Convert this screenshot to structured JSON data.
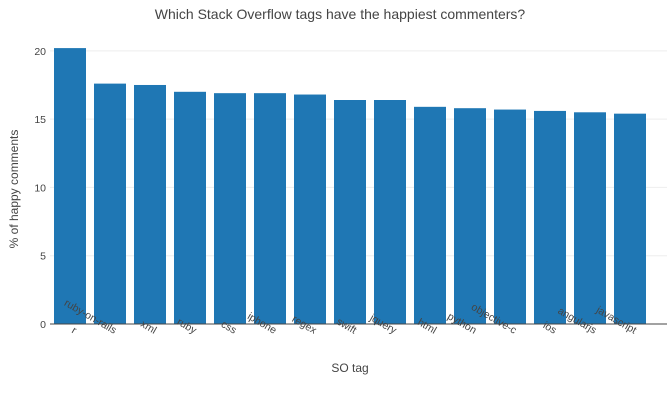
{
  "chart_data": {
    "type": "bar",
    "title": "Which Stack Overflow tags have the happiest commenters?",
    "xlabel": "SO tag",
    "ylabel": "% of happy comments",
    "ylim": [
      0,
      20.5
    ],
    "yticks": [
      0,
      5,
      10,
      15,
      20
    ],
    "grid": true,
    "bar_color": "#1f77b4",
    "categories": [
      "r",
      "ruby-on-rails",
      "xml",
      "ruby",
      "css",
      "iphone",
      "regex",
      "swift",
      "jquery",
      "html",
      "python",
      "objective-c",
      "ios",
      "angularjs",
      "javascript"
    ],
    "values": [
      20.2,
      17.6,
      17.5,
      17.0,
      16.9,
      16.9,
      16.8,
      16.4,
      16.4,
      15.9,
      15.8,
      15.7,
      15.6,
      15.5,
      15.4
    ]
  }
}
